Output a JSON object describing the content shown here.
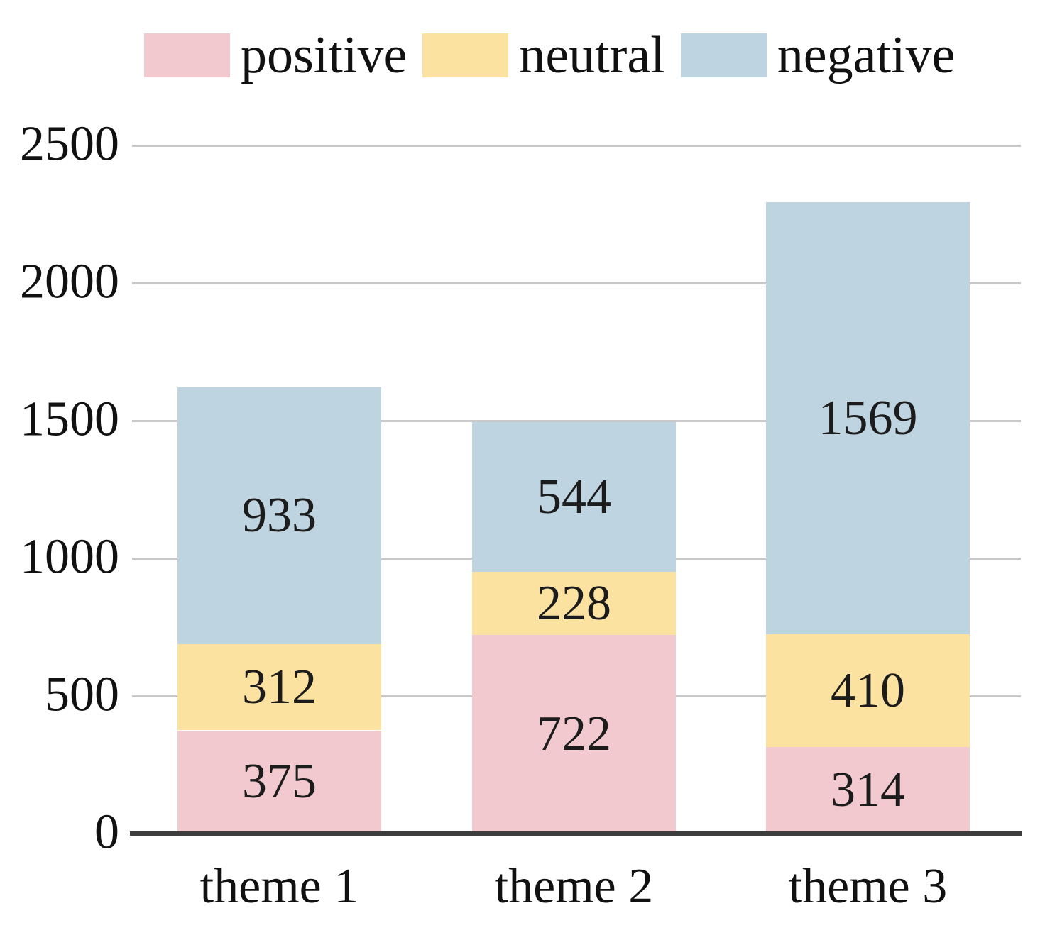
{
  "chart_data": {
    "type": "bar",
    "stacked": true,
    "categories": [
      "theme 1",
      "theme 2",
      "theme 3"
    ],
    "series": [
      {
        "name": "positive",
        "color": "#f2c9ce",
        "values": [
          375,
          722,
          314
        ]
      },
      {
        "name": "neutral",
        "color": "#fbe2a1",
        "values": [
          312,
          228,
          410
        ]
      },
      {
        "name": "negative",
        "color": "#bfd4e1",
        "values": [
          933,
          544,
          1569
        ]
      }
    ],
    "ylim": [
      0,
      2500
    ],
    "yticks": [
      0,
      500,
      1000,
      1500,
      2000,
      2500
    ],
    "grid": true,
    "legend_position": "top",
    "value_labels": "inside-center"
  },
  "colors": {
    "gridline": "#c8c8c8",
    "axis_line": "#3d3d3d",
    "text": "#111111"
  }
}
